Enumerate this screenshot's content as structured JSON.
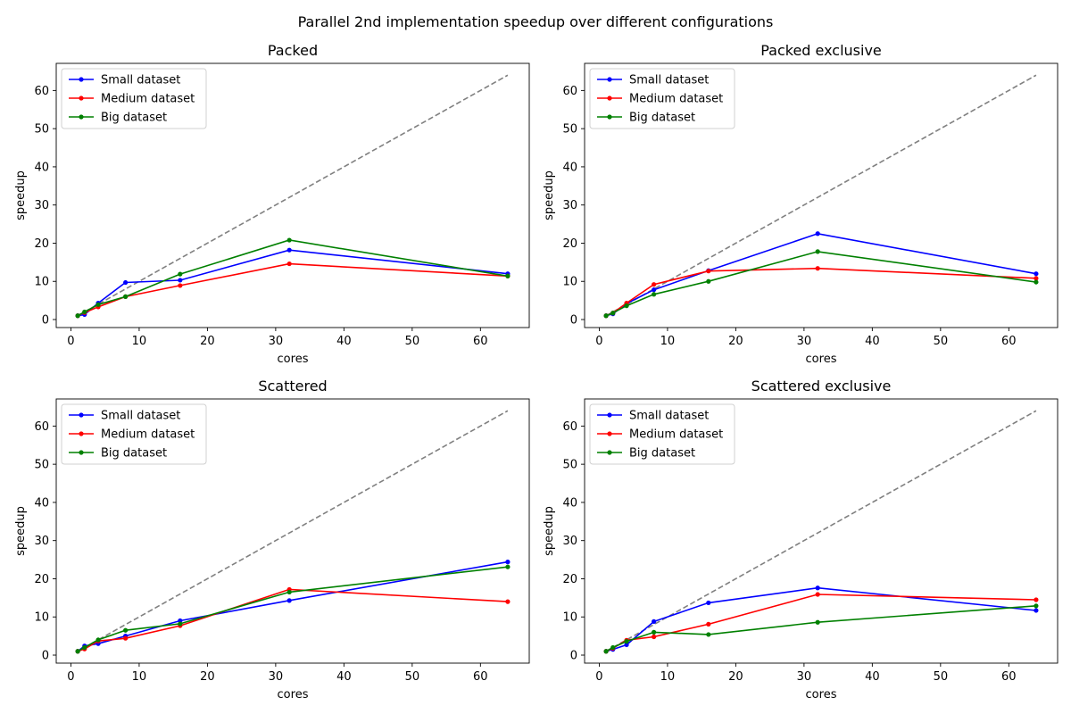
{
  "figure_title": "Parallel 2nd implementation speedup over different configurations",
  "chart_data": [
    {
      "type": "line",
      "title": "Packed",
      "xlabel": "cores",
      "ylabel": "speedup",
      "xlim": [
        -2.15,
        67.15
      ],
      "ylim": [
        -2.1,
        67.1
      ],
      "xticks": [
        0,
        10,
        20,
        30,
        40,
        50,
        60
      ],
      "yticks": [
        0,
        10,
        20,
        30,
        40,
        50,
        60
      ],
      "grid": false,
      "legend": "top-left",
      "x": [
        1,
        2,
        4,
        8,
        16,
        32,
        64
      ],
      "ideal": {
        "x": [
          1,
          64
        ],
        "y": [
          1,
          64
        ],
        "color": "#808080",
        "style": "dashed"
      },
      "series": [
        {
          "name": "Small dataset",
          "color": "#0000ff",
          "values": [
            1.0,
            1.3,
            4.3,
            9.7,
            10.3,
            18.2,
            12.0
          ]
        },
        {
          "name": "Medium dataset",
          "color": "#ff0000",
          "values": [
            1.0,
            1.8,
            3.3,
            6.0,
            8.9,
            14.6,
            11.4
          ]
        },
        {
          "name": "Big dataset",
          "color": "#008000",
          "values": [
            1.0,
            2.0,
            3.9,
            6.0,
            11.9,
            20.8,
            11.4
          ]
        }
      ]
    },
    {
      "type": "line",
      "title": "Packed exclusive",
      "xlabel": "cores",
      "ylabel": "speedup",
      "xlim": [
        -2.15,
        67.15
      ],
      "ylim": [
        -2.1,
        67.1
      ],
      "xticks": [
        0,
        10,
        20,
        30,
        40,
        50,
        60
      ],
      "yticks": [
        0,
        10,
        20,
        30,
        40,
        50,
        60
      ],
      "grid": false,
      "legend": "top-left",
      "x": [
        1,
        2,
        4,
        8,
        16,
        32,
        64
      ],
      "ideal": {
        "x": [
          1,
          64
        ],
        "y": [
          1,
          64
        ],
        "color": "#808080",
        "style": "dashed"
      },
      "series": [
        {
          "name": "Small dataset",
          "color": "#0000ff",
          "values": [
            1.0,
            1.5,
            4.2,
            7.8,
            12.8,
            22.5,
            12.0
          ]
        },
        {
          "name": "Medium dataset",
          "color": "#ff0000",
          "values": [
            1.0,
            1.7,
            4.3,
            9.2,
            12.7,
            13.4,
            10.8
          ]
        },
        {
          "name": "Big dataset",
          "color": "#008000",
          "values": [
            1.0,
            1.7,
            3.6,
            6.6,
            10.0,
            17.8,
            9.8
          ]
        }
      ]
    },
    {
      "type": "line",
      "title": "Scattered",
      "xlabel": "cores",
      "ylabel": "speedup",
      "xlim": [
        -2.15,
        67.15
      ],
      "ylim": [
        -2.1,
        67.1
      ],
      "xticks": [
        0,
        10,
        20,
        30,
        40,
        50,
        60
      ],
      "yticks": [
        0,
        10,
        20,
        30,
        40,
        50,
        60
      ],
      "grid": false,
      "legend": "top-left",
      "x": [
        1,
        2,
        4,
        8,
        16,
        32,
        64
      ],
      "ideal": {
        "x": [
          1,
          64
        ],
        "y": [
          1,
          64
        ],
        "color": "#808080",
        "style": "dashed"
      },
      "series": [
        {
          "name": "Small dataset",
          "color": "#0000ff",
          "values": [
            1.0,
            2.4,
            3.0,
            5.0,
            9.0,
            14.3,
            24.4
          ]
        },
        {
          "name": "Medium dataset",
          "color": "#ff0000",
          "values": [
            1.0,
            1.6,
            3.7,
            4.4,
            7.7,
            17.2,
            14.0
          ]
        },
        {
          "name": "Big dataset",
          "color": "#008000",
          "values": [
            1.0,
            2.0,
            4.0,
            6.5,
            8.2,
            16.5,
            23.1
          ]
        }
      ]
    },
    {
      "type": "line",
      "title": "Scattered exclusive",
      "xlabel": "cores",
      "ylabel": "speedup",
      "xlim": [
        -2.15,
        67.15
      ],
      "ylim": [
        -2.1,
        67.1
      ],
      "xticks": [
        0,
        10,
        20,
        30,
        40,
        50,
        60
      ],
      "yticks": [
        0,
        10,
        20,
        30,
        40,
        50,
        60
      ],
      "grid": false,
      "legend": "top-left",
      "x": [
        1,
        2,
        4,
        8,
        16,
        32,
        64
      ],
      "ideal": {
        "x": [
          1,
          64
        ],
        "y": [
          1,
          64
        ],
        "color": "#808080",
        "style": "dashed"
      },
      "series": [
        {
          "name": "Small dataset",
          "color": "#0000ff",
          "values": [
            1.0,
            1.5,
            2.7,
            8.8,
            13.7,
            17.6,
            11.7
          ]
        },
        {
          "name": "Medium dataset",
          "color": "#ff0000",
          "values": [
            1.0,
            1.8,
            3.9,
            4.8,
            8.1,
            15.9,
            14.5
          ]
        },
        {
          "name": "Big dataset",
          "color": "#008000",
          "values": [
            1.0,
            2.0,
            3.6,
            6.0,
            5.4,
            8.6,
            12.9
          ]
        }
      ]
    }
  ]
}
